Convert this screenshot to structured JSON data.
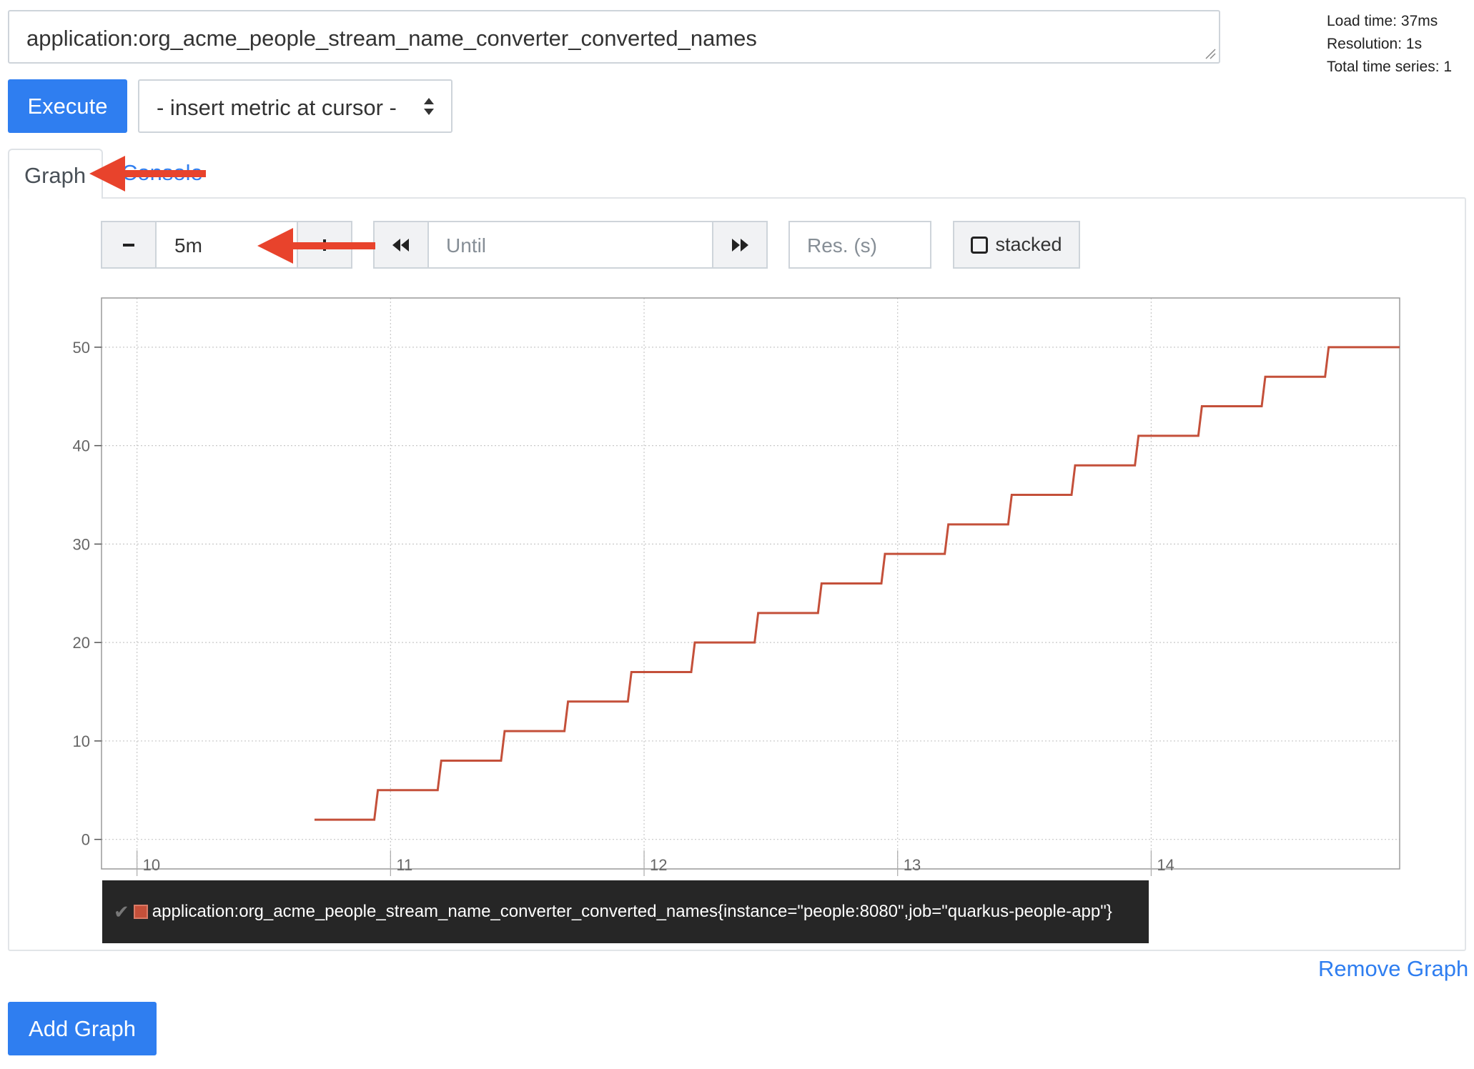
{
  "query": {
    "expression": "application:org_acme_people_stream_name_converter_converted_names"
  },
  "stats": {
    "load_time": "Load time: 37ms",
    "resolution": "Resolution: 1s",
    "total_series": "Total time series: 1"
  },
  "toolbar": {
    "execute_label": "Execute",
    "metric_select_value": "- insert metric at cursor -"
  },
  "tabs": {
    "graph": "Graph",
    "console": "Console"
  },
  "controls": {
    "range_value": "5m",
    "until_placeholder": "Until",
    "resolution_placeholder": "Res. (s)",
    "stacked_label": "stacked",
    "minus_icon": "minus-icon",
    "plus_icon": "plus-icon",
    "back_icon": "rewind-icon",
    "forward_icon": "fast-forward-icon"
  },
  "chart_data": {
    "type": "line",
    "ylim": [
      -3,
      55
    ],
    "xlim": [
      9.86,
      14.98
    ],
    "y_ticks": [
      0,
      10,
      20,
      30,
      40,
      50
    ],
    "x_ticks": [
      10,
      11,
      12,
      13,
      14
    ],
    "grid": true,
    "series": [
      {
        "color": "#c4503a",
        "step": true,
        "points": [
          [
            10.7,
            2
          ],
          [
            10.95,
            5
          ],
          [
            11.2,
            8
          ],
          [
            11.45,
            11
          ],
          [
            11.7,
            14
          ],
          [
            11.95,
            17
          ],
          [
            12.2,
            20
          ],
          [
            12.45,
            23
          ],
          [
            12.7,
            26
          ],
          [
            12.95,
            29
          ],
          [
            13.2,
            32
          ],
          [
            13.45,
            35
          ],
          [
            13.7,
            38
          ],
          [
            13.95,
            41
          ],
          [
            14.2,
            44
          ],
          [
            14.45,
            47
          ],
          [
            14.7,
            50
          ],
          [
            14.98,
            50
          ]
        ]
      }
    ]
  },
  "legend": {
    "check_icon": "checkmark-icon",
    "series_label": "application:org_acme_people_stream_name_converter_converted_names{instance=\"people:8080\",job=\"quarkus-people-app\"}",
    "series_color": "#c4503a"
  },
  "footer": {
    "remove_graph": "Remove Graph",
    "add_graph": "Add Graph"
  },
  "colors": {
    "primary": "#2f7ef0",
    "annotation_arrow": "#e8432c"
  }
}
